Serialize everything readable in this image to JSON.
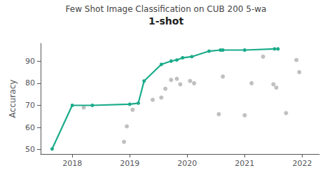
{
  "chart_data": {
    "type": "line",
    "title": "Few Shot Image Classification on CUB 200 5-wa",
    "subtitle": "1-shot",
    "ylabel": "Accuracy",
    "xlim": [
      2017.45,
      2022.3
    ],
    "ylim": [
      48,
      98
    ],
    "xticks": [
      2018,
      2019,
      2020,
      2021,
      2022
    ],
    "yticks": [
      50,
      60,
      70,
      80,
      90
    ],
    "grid": false,
    "series": [
      {
        "type": "scatter",
        "color": "#b0b0b0",
        "marker": "circle",
        "x": [
          2018.2,
          2018.9,
          2018.95,
          2019.05,
          2019.4,
          2019.55,
          2019.62,
          2019.72,
          2019.82,
          2019.88,
          2020.05,
          2020.12,
          2020.55,
          2020.62,
          2021.0,
          2021.12,
          2021.32,
          2021.5,
          2021.55,
          2021.72,
          2021.9,
          2021.95
        ],
        "values": [
          69.0,
          53.5,
          60.5,
          68.0,
          72.5,
          73.5,
          77.5,
          81.5,
          82.0,
          79.5,
          81.0,
          80.0,
          66.0,
          83.0,
          65.5,
          80.0,
          92.0,
          79.5,
          78.0,
          66.5,
          90.5,
          85.0
        ]
      },
      {
        "type": "line",
        "color": "#1aab8a",
        "marker": "circle",
        "line_style": "solid",
        "x": [
          2017.65,
          2018.0,
          2018.35,
          2019.0,
          2019.15,
          2019.25,
          2019.55,
          2019.72,
          2019.82,
          2019.92,
          2020.08,
          2020.38,
          2020.58,
          2020.62,
          2021.0,
          2021.52,
          2021.58
        ],
        "values": [
          50.3,
          70.0,
          70.0,
          70.5,
          71.0,
          81.0,
          88.5,
          90.0,
          90.5,
          91.5,
          92.0,
          94.5,
          95.0,
          95.0,
          95.0,
          95.5,
          95.5
        ]
      }
    ]
  }
}
